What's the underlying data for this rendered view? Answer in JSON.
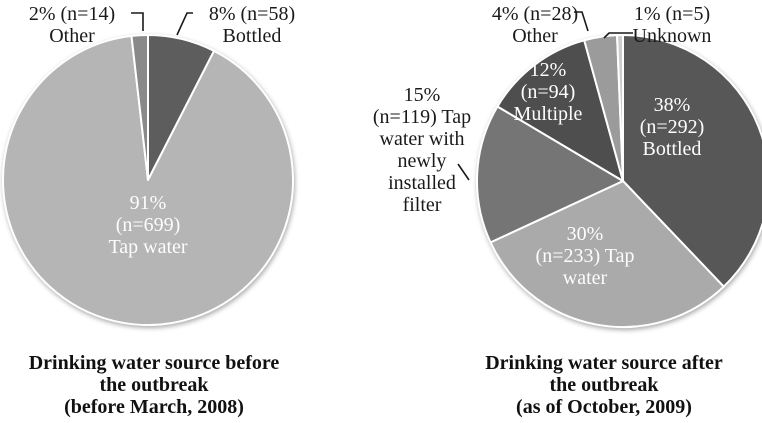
{
  "figure": {
    "background_color": "#ffffff",
    "text_color": "#1a1a1a",
    "inner_label_color": "#fdfdfd"
  },
  "chart_data": [
    {
      "type": "pie",
      "title": "Drinking water source before the outbreak (before March, 2008)",
      "labels": [
        "Bottled",
        "Tap water",
        "Other"
      ],
      "values_pct": [
        8,
        91,
        2
      ],
      "values_n": [
        58,
        699,
        14
      ],
      "colors": [
        "#5d5d5d",
        "#b5b5b5",
        "#898989"
      ],
      "start_angle_deg": 0,
      "direction": "clockwise",
      "legend": "none"
    },
    {
      "type": "pie",
      "title": "Drinking water source after the outbreak (as of October, 2009)",
      "labels": [
        "Bottled",
        "Tap water",
        "Tap water with newly installed filter",
        "Multiple",
        "Other",
        "Unknown"
      ],
      "values_pct": [
        38,
        30,
        15,
        12,
        4,
        1
      ],
      "values_n": [
        292,
        233,
        119,
        94,
        28,
        5
      ],
      "colors": [
        "#575757",
        "#aaaaaa",
        "#757575",
        "#4e4e4e",
        "#9b9b9b",
        "#cdcdcd"
      ],
      "start_angle_deg": 0,
      "direction": "clockwise",
      "legend": "none"
    }
  ],
  "charts": [
    {
      "caption": "Drinking water source before\nthe outbreak\n(before March, 2008)",
      "callouts": {
        "other": "2% (n=14)\nOther",
        "bottled": "8% (n=58)\nBottled"
      },
      "inner_labels": {
        "tap": "91%\n(n=699)\nTap water"
      }
    },
    {
      "caption": "Drinking water source after\nthe outbreak\n(as of October, 2009)",
      "callouts": {
        "other": "4% (n=28)\nOther",
        "unknown": "1% (n=5)\nUnknown",
        "filter": "15%\n(n=119) Tap\nwater with\nnewly\ninstalled\nfilter"
      },
      "inner_labels": {
        "multiple": "12%\n(n=94)\nMultiple",
        "bottled": "38%\n(n=292)\nBottled",
        "tap": "30%\n(n=233) Tap\nwater"
      }
    }
  ]
}
